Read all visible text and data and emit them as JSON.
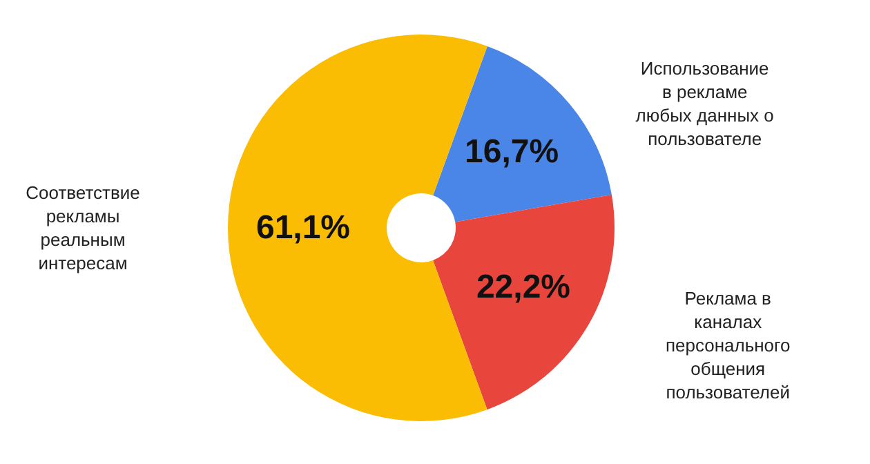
{
  "chart_data": {
    "type": "donut",
    "categories": [
      "Использование в рекламе любых данных о пользователе",
      "Реклама в каналах персонального общения пользователей",
      "Соответствие рекламы реальным интересам"
    ],
    "values": [
      16.7,
      22.2,
      61.1
    ],
    "colors": [
      "#4a86e8",
      "#e8453c",
      "#fbbc04"
    ],
    "value_labels": [
      "16,7%",
      "22,2%",
      "61,1%"
    ],
    "legend": false
  }
}
